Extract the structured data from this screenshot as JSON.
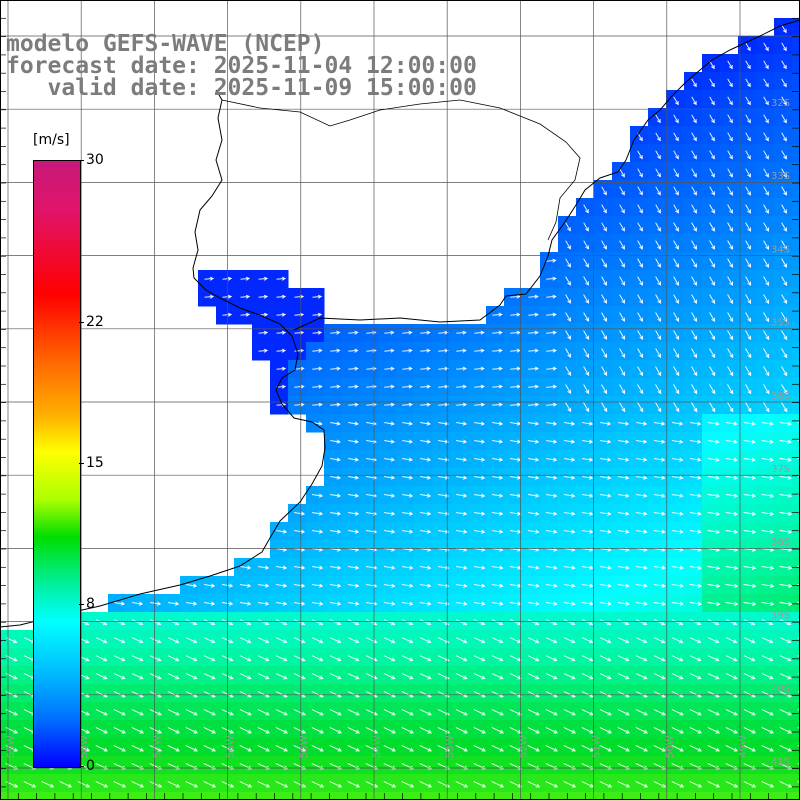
{
  "title": {
    "line1": "modelo GEFS-WAVE (NCEP)",
    "line2": "forecast date: 2025-11-04 12:00:00",
    "line3": "   valid date: 2025-11-09 15:00:00"
  },
  "colorbar": {
    "unit": "[m/s]",
    "ticks": [
      {
        "label": "30",
        "value": 30
      },
      {
        "label": "22",
        "value": 22
      },
      {
        "label": "15",
        "value": 15
      },
      {
        "label": "8",
        "value": 8
      },
      {
        "label": "0",
        "value": 0
      }
    ]
  },
  "latitude_labels": [
    "32S",
    "33S",
    "34S",
    "35S",
    "36S",
    "37S",
    "38S",
    "39S",
    "40S",
    "41S"
  ],
  "longitude_labels": [
    "59W",
    "58W",
    "57W",
    "56W",
    "55W",
    "54W",
    "53W",
    "52W",
    "51W",
    "50W",
    "49W"
  ],
  "colors": {
    "grid": "#555555",
    "coast": "#000000",
    "arrow": "#ffffff",
    "title": "#7c7c7c"
  }
}
